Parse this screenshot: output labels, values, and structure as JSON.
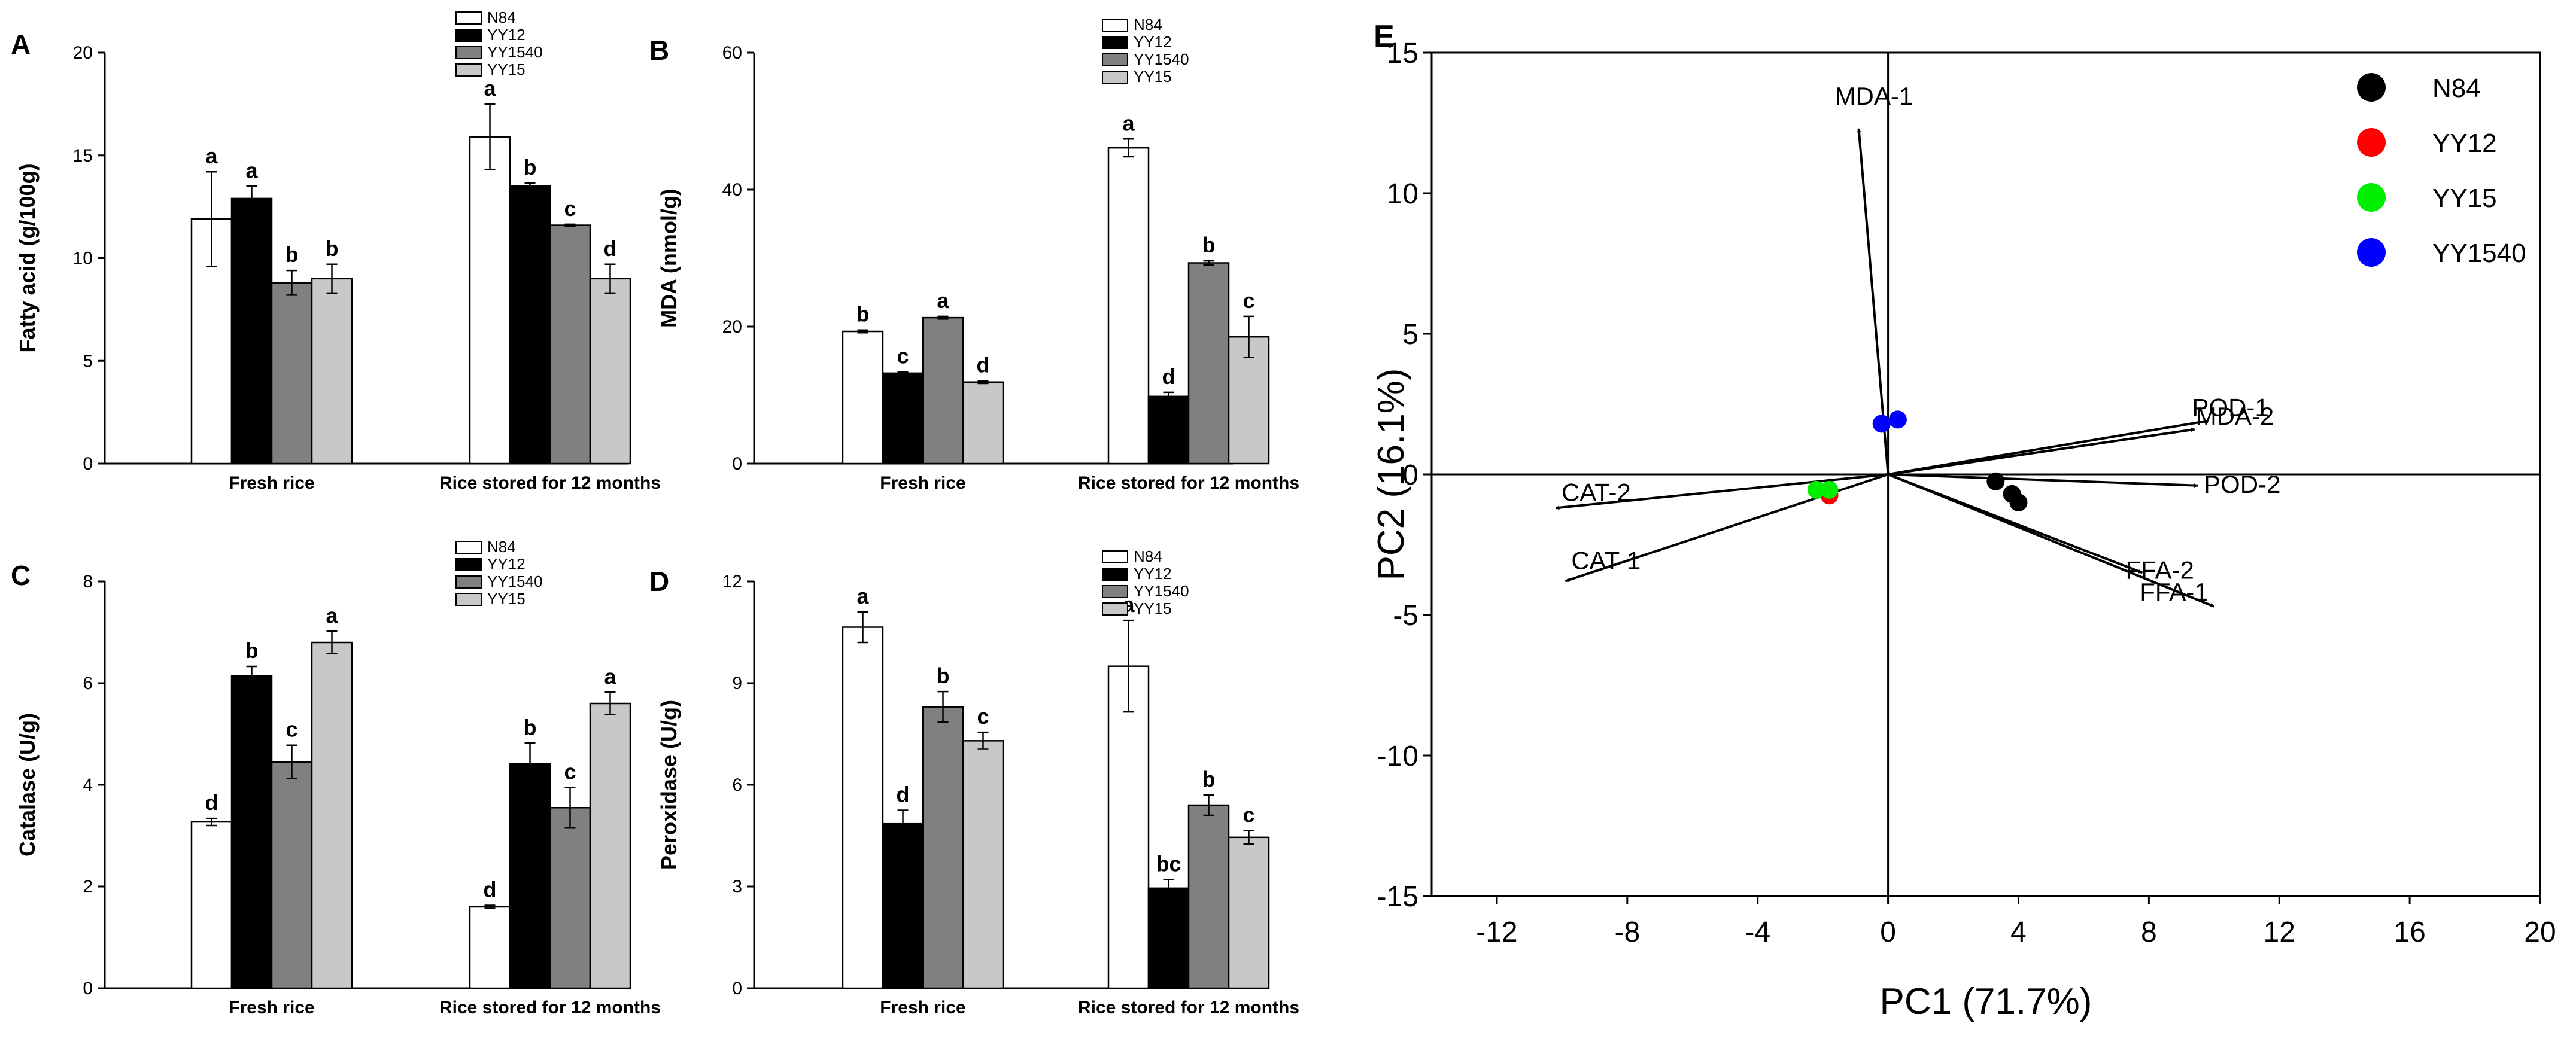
{
  "colors": {
    "N84": "#ffffff",
    "YY12": "#000000",
    "YY1540": "#808080",
    "YY15": "#c8c8c8"
  },
  "chart_data": [
    {
      "type": "bar",
      "panel": "A",
      "ylabel": "Fatty acid (g/100g)",
      "ylim": [
        0,
        20
      ],
      "yticks": [
        0,
        5,
        10,
        15,
        20
      ],
      "categories": [
        "Fresh rice",
        "Rice stored for 12 months"
      ],
      "legend": [
        "N84",
        "YY12",
        "YY1540",
        "YY15"
      ],
      "series": [
        {
          "name": "N84",
          "values": [
            11.9,
            15.9
          ],
          "errors": [
            2.3,
            1.6
          ],
          "labels": [
            "a",
            "a"
          ]
        },
        {
          "name": "YY12",
          "values": [
            12.9,
            13.5
          ],
          "errors": [
            0.6,
            0.15
          ],
          "labels": [
            "a",
            "b"
          ]
        },
        {
          "name": "YY1540",
          "values": [
            8.8,
            11.6
          ],
          "errors": [
            0.6,
            0.05
          ],
          "labels": [
            "b",
            "c"
          ]
        },
        {
          "name": "YY15",
          "values": [
            9.0,
            9.0
          ],
          "errors": [
            0.7,
            0.7
          ],
          "labels": [
            "b",
            "d"
          ]
        }
      ]
    },
    {
      "type": "bar",
      "panel": "B",
      "ylabel": "MDA (nmol/g)",
      "ylim": [
        0,
        60
      ],
      "yticks": [
        0,
        20,
        40,
        60
      ],
      "categories": [
        "Fresh rice",
        "Rice stored for 12 months"
      ],
      "legend": [
        "N84",
        "YY12",
        "YY1540",
        "YY15"
      ],
      "series": [
        {
          "name": "N84",
          "values": [
            19.3,
            46.1
          ],
          "errors": [
            0.2,
            1.3
          ],
          "labels": [
            "b",
            "a"
          ]
        },
        {
          "name": "YY12",
          "values": [
            13.2,
            9.8
          ],
          "errors": [
            0.2,
            0.6
          ],
          "labels": [
            "c",
            "d"
          ]
        },
        {
          "name": "YY1540",
          "values": [
            21.3,
            29.3
          ],
          "errors": [
            0.2,
            0.3
          ],
          "labels": [
            "a",
            "b"
          ]
        },
        {
          "name": "YY15",
          "values": [
            11.9,
            18.5
          ],
          "errors": [
            0.2,
            3.0
          ],
          "labels": [
            "d",
            "c"
          ]
        }
      ]
    },
    {
      "type": "bar",
      "panel": "C",
      "ylabel": "Catalase (U/g)",
      "ylim": [
        0,
        8
      ],
      "yticks": [
        0,
        2,
        4,
        6,
        8
      ],
      "categories": [
        "Fresh rice",
        "Rice stored for 12 months"
      ],
      "legend": [
        "N84",
        "YY12",
        "YY1540",
        "YY15"
      ],
      "series": [
        {
          "name": "N84",
          "values": [
            3.27,
            1.6
          ],
          "errors": [
            0.07,
            0.03
          ],
          "labels": [
            "d",
            "d"
          ]
        },
        {
          "name": "YY12",
          "values": [
            6.15,
            4.42
          ],
          "errors": [
            0.18,
            0.4
          ],
          "labels": [
            "b",
            "b"
          ]
        },
        {
          "name": "YY1540",
          "values": [
            4.45,
            3.55
          ],
          "errors": [
            0.33,
            0.4
          ],
          "labels": [
            "c",
            "c"
          ]
        },
        {
          "name": "YY15",
          "values": [
            6.8,
            5.6
          ],
          "errors": [
            0.22,
            0.22
          ],
          "labels": [
            "a",
            "a"
          ]
        }
      ]
    },
    {
      "type": "bar",
      "panel": "D",
      "ylabel": "Peroxidase  (U/g)",
      "ylim": [
        0,
        12
      ],
      "yticks": [
        0,
        3,
        6,
        9,
        12
      ],
      "categories": [
        "Fresh rice",
        "Rice stored for 12 months"
      ],
      "legend": [
        "N84",
        "YY12",
        "YY1540",
        "YY15"
      ],
      "series": [
        {
          "name": "N84",
          "values": [
            10.65,
            9.5
          ],
          "errors": [
            0.45,
            1.35
          ],
          "labels": [
            "a",
            "a"
          ]
        },
        {
          "name": "YY12",
          "values": [
            4.85,
            2.95
          ],
          "errors": [
            0.4,
            0.25
          ],
          "labels": [
            "d",
            "bc"
          ]
        },
        {
          "name": "YY1540",
          "values": [
            8.3,
            5.4
          ],
          "errors": [
            0.45,
            0.3
          ],
          "labels": [
            "b",
            "b"
          ]
        },
        {
          "name": "YY15",
          "values": [
            7.3,
            4.45
          ],
          "errors": [
            0.25,
            0.2
          ],
          "labels": [
            "c",
            "c"
          ]
        }
      ]
    },
    {
      "type": "scatter",
      "panel": "E",
      "xlabel": "PC1 (71.7%)",
      "ylabel": "PC2 (16.1%)",
      "xlim": [
        -14,
        20
      ],
      "ylim": [
        -15,
        15
      ],
      "xticks": [
        -12,
        -8,
        -4,
        0,
        4,
        8,
        12,
        16,
        20
      ],
      "yticks": [
        -15,
        -10,
        -5,
        0,
        5,
        10,
        15
      ],
      "series": [
        {
          "name": "N84",
          "color": "#000000",
          "points": [
            [
              3.3,
              -0.25
            ],
            [
              3.8,
              -0.7
            ],
            [
              4.0,
              -1.0
            ]
          ]
        },
        {
          "name": "YY12",
          "color": "#ff0000",
          "points": [
            [
              -1.8,
              -0.75
            ]
          ]
        },
        {
          "name": "YY15",
          "color": "#00ee00",
          "points": [
            [
              -2.2,
              -0.55
            ],
            [
              -1.8,
              -0.55
            ]
          ]
        },
        {
          "name": "YY1540",
          "color": "#0000ff",
          "points": [
            [
              -0.2,
              1.8
            ],
            [
              0.3,
              1.95
            ]
          ]
        }
      ],
      "vectors": [
        {
          "label": "MDA-1",
          "x": -0.9,
          "y": 12.3
        },
        {
          "label": "POD-1",
          "x": 9.8,
          "y": 1.9
        },
        {
          "label": "MDA-2",
          "x": 9.4,
          "y": 1.6
        },
        {
          "label": "POD-2",
          "x": 9.5,
          "y": -0.4
        },
        {
          "label": "FFA-2",
          "x": 7.8,
          "y": -3.5
        },
        {
          "label": "FFA-1",
          "x": 10.0,
          "y": -4.7
        },
        {
          "label": "CAT-2",
          "x": -10.2,
          "y": -1.2
        },
        {
          "label": "CAT-1",
          "x": -9.9,
          "y": -3.8
        }
      ]
    }
  ],
  "panel_e": {
    "letter": "E"
  }
}
